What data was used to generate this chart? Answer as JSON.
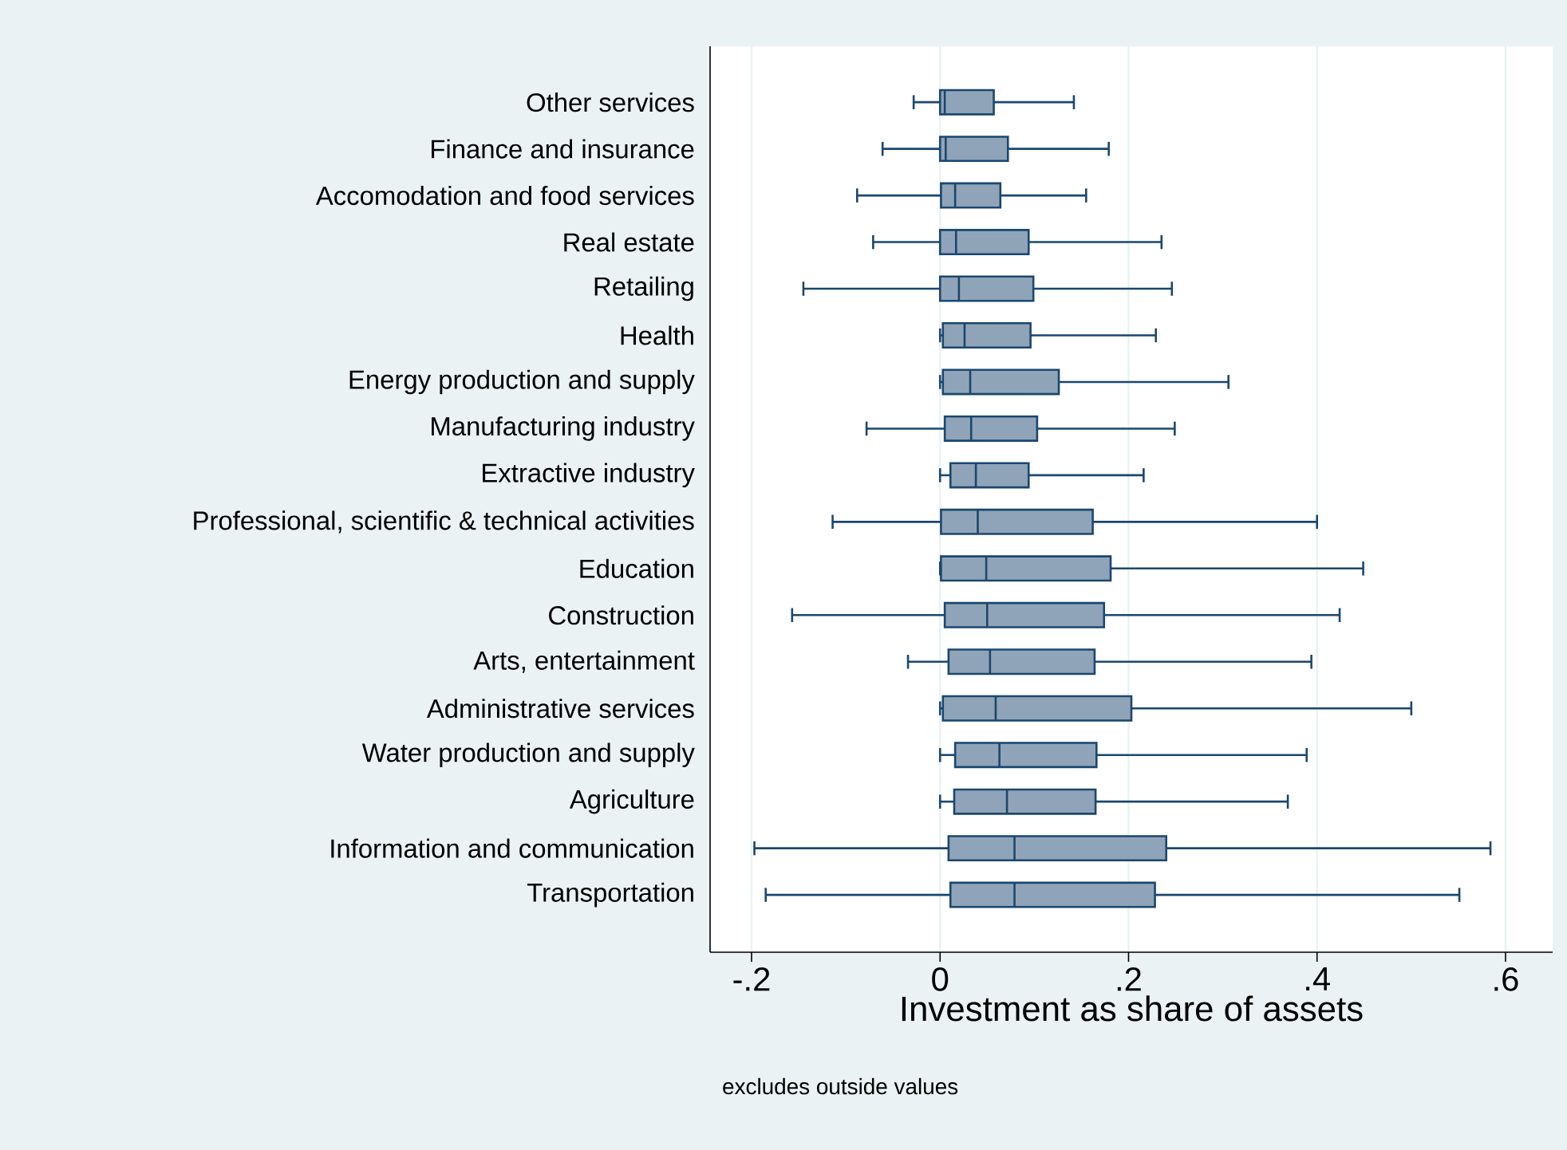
{
  "chart_data": {
    "type": "box",
    "orientation": "horizontal",
    "categories": [
      "Other services",
      "Finance and insurance",
      "Accomodation and food services",
      "Real estate",
      "Retailing",
      "Health",
      "Energy production and supply",
      "Manufacturing industry",
      "Extractive industry",
      "Professional, scientific & technical activities",
      "Education",
      "Construction",
      "Arts, entertainment",
      "Administrative services",
      "Water production and supply",
      "Agriculture",
      "Information and communication",
      "Transportation"
    ],
    "boxes": [
      {
        "low": -0.028,
        "q1": 0.0,
        "median": 0.005,
        "q3": 0.057,
        "high": 0.142
      },
      {
        "low": -0.061,
        "q1": 0.0,
        "median": 0.006,
        "q3": 0.072,
        "high": 0.179
      },
      {
        "low": -0.088,
        "q1": 0.001,
        "median": 0.016,
        "q3": 0.064,
        "high": 0.155
      },
      {
        "low": -0.071,
        "q1": 0.0,
        "median": 0.017,
        "q3": 0.094,
        "high": 0.235
      },
      {
        "low": -0.145,
        "q1": 0.0,
        "median": 0.02,
        "q3": 0.099,
        "high": 0.246
      },
      {
        "low": 0.0,
        "q1": 0.003,
        "median": 0.026,
        "q3": 0.096,
        "high": 0.229
      },
      {
        "low": 0.0,
        "q1": 0.003,
        "median": 0.032,
        "q3": 0.126,
        "high": 0.306
      },
      {
        "low": -0.078,
        "q1": 0.005,
        "median": 0.033,
        "q3": 0.103,
        "high": 0.249
      },
      {
        "low": 0.0,
        "q1": 0.011,
        "median": 0.038,
        "q3": 0.094,
        "high": 0.216
      },
      {
        "low": -0.114,
        "q1": 0.001,
        "median": 0.04,
        "q3": 0.162,
        "high": 0.4
      },
      {
        "low": 0.0,
        "q1": 0.001,
        "median": 0.049,
        "q3": 0.181,
        "high": 0.449
      },
      {
        "low": -0.157,
        "q1": 0.005,
        "median": 0.05,
        "q3": 0.174,
        "high": 0.424
      },
      {
        "low": -0.034,
        "q1": 0.009,
        "median": 0.053,
        "q3": 0.164,
        "high": 0.394
      },
      {
        "low": 0.0,
        "q1": 0.003,
        "median": 0.059,
        "q3": 0.203,
        "high": 0.5
      },
      {
        "low": 0.0,
        "q1": 0.016,
        "median": 0.063,
        "q3": 0.166,
        "high": 0.389
      },
      {
        "low": 0.0,
        "q1": 0.015,
        "median": 0.071,
        "q3": 0.165,
        "high": 0.369
      },
      {
        "low": -0.197,
        "q1": 0.009,
        "median": 0.079,
        "q3": 0.24,
        "high": 0.584
      },
      {
        "low": -0.185,
        "q1": 0.011,
        "median": 0.079,
        "q3": 0.228,
        "high": 0.551
      }
    ],
    "color": "#90a4b9",
    "xlabel": "Investment as share of assets",
    "xlim": [
      -0.244,
      0.65
    ],
    "xticks": [
      {
        "value": -0.2,
        "label": "-.2"
      },
      0,
      {
        "value": 0.2,
        "label": ".2"
      },
      {
        "value": 0.4,
        "label": ".4"
      },
      {
        "value": 0.6,
        "label": ".6"
      }
    ],
    "grid": "x",
    "annotations": [
      "excludes outside values"
    ]
  }
}
